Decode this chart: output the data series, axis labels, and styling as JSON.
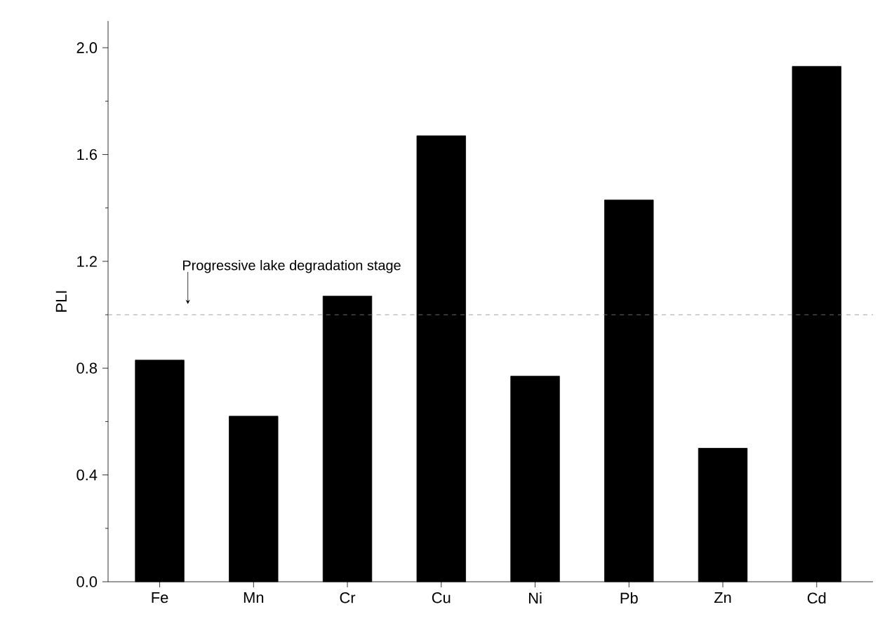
{
  "chart_data": {
    "type": "bar",
    "ylabel": "PLI",
    "categories": [
      "Fe",
      "Mn",
      "Cr",
      "Cu",
      "Ni",
      "Pb",
      "Zn",
      "Cd"
    ],
    "values": [
      0.83,
      0.62,
      1.07,
      1.67,
      0.77,
      1.43,
      0.5,
      1.93
    ],
    "color": "#000000",
    "ylim": [
      0,
      2.1
    ],
    "yticks": [
      {
        "value": 0,
        "label": "0.0"
      },
      {
        "value": 0.4,
        "label": "0.4"
      },
      {
        "value": 0.8,
        "label": "0.8"
      },
      {
        "value": 1.2,
        "label": "1.2"
      },
      {
        "value": 1.6,
        "label": "1.6"
      },
      {
        "value": 2.0,
        "label": "2.0"
      }
    ],
    "ref_lines": [
      {
        "axis": "y",
        "value": 1.0,
        "label": "Progressive lake degradation stage",
        "color": "#888888",
        "line_style": "dashed"
      }
    ],
    "line_style": "solid"
  }
}
